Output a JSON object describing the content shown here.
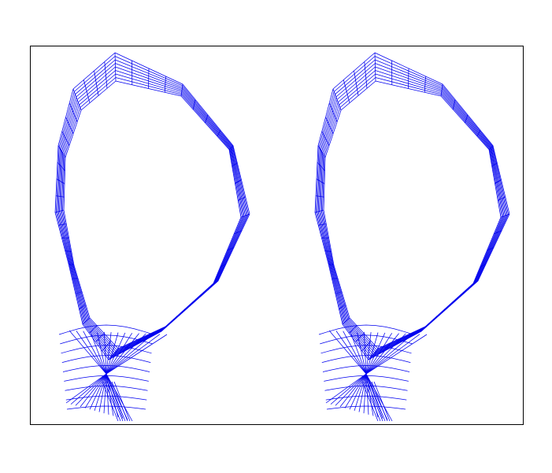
{
  "figure": {
    "panels": [
      {
        "id": "left",
        "mesh": "radial-loop"
      },
      {
        "id": "right",
        "mesh": "radial-loop"
      }
    ]
  },
  "colors": {
    "mesh": "#0000ee",
    "frame": "#000000",
    "background": "#ffffff"
  },
  "icons": []
}
